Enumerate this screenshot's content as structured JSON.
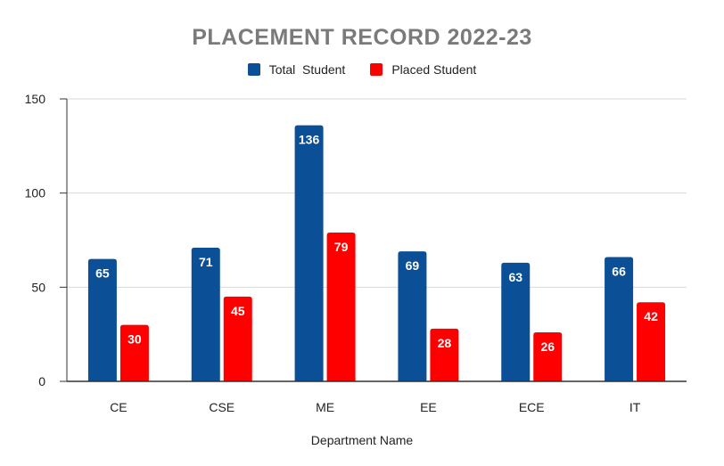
{
  "chart_data": {
    "type": "bar",
    "title": "PLACEMENT RECORD 2022-23",
    "xlabel": "Department Name",
    "ylabel": "",
    "ylim": [
      0,
      150
    ],
    "yticks": [
      0,
      50,
      100,
      150
    ],
    "grid": true,
    "legend_position": "top",
    "categories": [
      "CE",
      "CSE",
      "ME",
      "EE",
      "ECE",
      "IT"
    ],
    "series": [
      {
        "name": "Total  Student",
        "color": "#0b4f96",
        "values": [
          65,
          71,
          136,
          69,
          63,
          66
        ]
      },
      {
        "name": "Placed Student",
        "color": "#ff0000",
        "values": [
          30,
          45,
          79,
          28,
          26,
          42
        ]
      }
    ]
  }
}
